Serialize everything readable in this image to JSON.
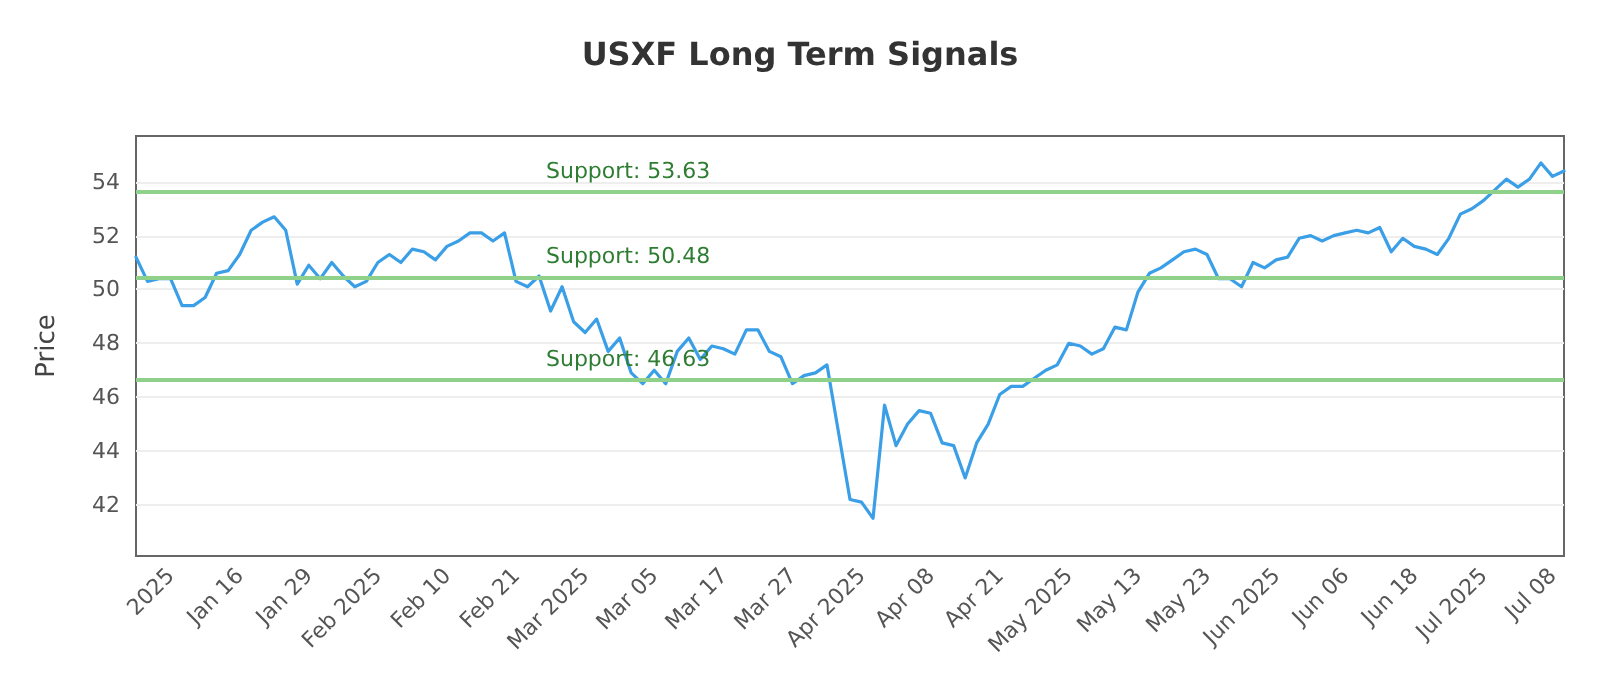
{
  "chart_data": {
    "type": "line",
    "title": "USXF Long Term Signals",
    "ylabel": "Price",
    "categories": [
      null,
      null,
      null,
      "2025",
      null,
      null,
      null,
      null,
      null,
      "Jan 16",
      null,
      null,
      null,
      null,
      null,
      "Jan 29",
      null,
      null,
      null,
      null,
      null,
      "Feb 2025",
      null,
      null,
      null,
      null,
      null,
      "Feb 10",
      null,
      null,
      null,
      null,
      null,
      "Feb 21",
      null,
      null,
      null,
      null,
      null,
      "Mar 2025",
      null,
      null,
      null,
      null,
      null,
      "Mar 05",
      null,
      null,
      null,
      null,
      null,
      "Mar 17",
      null,
      null,
      null,
      null,
      null,
      "Mar 27",
      null,
      null,
      null,
      null,
      null,
      "Apr 2025",
      null,
      null,
      null,
      null,
      null,
      "Apr 08",
      null,
      null,
      null,
      null,
      null,
      "Apr 21",
      null,
      null,
      null,
      null,
      null,
      "May 2025",
      null,
      null,
      null,
      null,
      null,
      "May 13",
      null,
      null,
      null,
      null,
      null,
      "May 23",
      null,
      null,
      null,
      null,
      null,
      "Jun 2025",
      null,
      null,
      null,
      null,
      null,
      "Jun 06",
      null,
      null,
      null,
      null,
      null,
      "Jun 18",
      null,
      null,
      null,
      null,
      null,
      "Jul 2025",
      null,
      null,
      null,
      null,
      null,
      "Jul 08",
      null
    ],
    "series": [
      {
        "color": "#3a9fe6",
        "values": [
          51.2,
          50.3,
          50.4,
          50.4,
          49.4,
          49.4,
          49.7,
          50.6,
          50.7,
          51.3,
          52.2,
          52.5,
          52.7,
          52.2,
          50.2,
          50.9,
          50.4,
          51.0,
          50.5,
          50.1,
          50.3,
          51.0,
          51.3,
          51.0,
          51.5,
          51.4,
          51.1,
          51.6,
          51.8,
          52.1,
          52.1,
          51.8,
          52.1,
          50.3,
          50.1,
          50.5,
          49.2,
          50.1,
          48.8,
          48.4,
          48.9,
          47.7,
          48.2,
          46.9,
          46.5,
          47.0,
          46.5,
          47.7,
          48.2,
          47.4,
          47.9,
          47.8,
          47.6,
          48.5,
          48.5,
          47.7,
          47.5,
          46.5,
          46.8,
          46.9,
          47.2,
          44.7,
          42.2,
          42.1,
          41.5,
          45.7,
          44.2,
          45.0,
          45.5,
          45.4,
          44.3,
          44.2,
          43.0,
          44.3,
          45.0,
          46.1,
          46.4,
          46.4,
          46.7,
          47.0,
          47.2,
          48.0,
          47.9,
          47.6,
          47.8,
          48.6,
          48.5,
          49.9,
          50.6,
          50.8,
          51.1,
          51.4,
          51.5,
          51.3,
          50.4,
          50.4,
          50.1,
          51.0,
          50.8,
          51.1,
          51.2,
          51.9,
          52.0,
          51.8,
          52.0,
          52.1,
          52.2,
          52.1,
          52.3,
          51.4,
          51.9,
          51.6,
          51.5,
          51.3,
          51.9,
          52.8,
          53.0,
          53.3,
          53.7,
          54.1,
          53.8,
          54.1,
          54.7,
          54.2,
          54.4
        ]
      }
    ],
    "ylim": [
      40.1,
      55.7
    ],
    "yticks": [
      42,
      44,
      46,
      48,
      50,
      52,
      54
    ],
    "grid": "y",
    "marker": "none",
    "line_style": "solid",
    "ref_lines": [
      {
        "axis": "y",
        "value": 53.63,
        "label": "Support: 53.63",
        "color": "#8fd08a"
      },
      {
        "axis": "y",
        "value": 50.48,
        "label": "Support: 50.48",
        "color": "#8fd08a"
      },
      {
        "axis": "y",
        "value": 46.63,
        "label": "Support: 46.63",
        "color": "#8fd08a"
      }
    ]
  }
}
